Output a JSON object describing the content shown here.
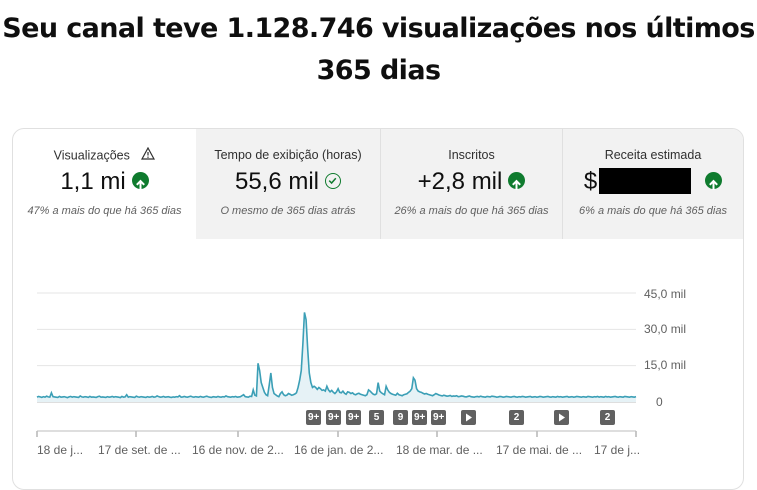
{
  "headline": {
    "line1": "Seu canal teve 1.128.746 visualizações nos últimos",
    "line2": "365 dias"
  },
  "metrics": [
    {
      "label": "Visualizações",
      "value": "1,1 mi",
      "comparison": "47% a mais do que há 365 dias",
      "trend_icon": "arrow-up-icon",
      "extra_icon": "warning-icon",
      "state": "selected"
    },
    {
      "label": "Tempo de exibição (horas)",
      "value": "55,6 mil",
      "comparison": "O mesmo de 365 dias atrás",
      "trend_icon": "check-circle-icon",
      "state": "inactive"
    },
    {
      "label": "Inscritos",
      "value": "+2,8 mil",
      "comparison": "26% a mais do que há 365 dias",
      "trend_icon": "arrow-up-icon",
      "state": "inactive"
    },
    {
      "label": "Receita estimada",
      "value": "$",
      "comparison": "6% a mais do que há 365 dias",
      "trend_icon": "arrow-up-icon",
      "value_redacted": true,
      "state": "inactive"
    }
  ],
  "chart_data": {
    "type": "area",
    "y_tick_labels": [
      "45,0 mil",
      "30,0 mil",
      "15,0 mil",
      "0"
    ],
    "y_ticks": [
      45000,
      30000,
      15000,
      0
    ],
    "ylim": [
      0,
      45000
    ],
    "x_tick_labels": [
      "18 de j...",
      "17 de set. de ...",
      "16 de nov. de 2...",
      "16 de jan. de 2...",
      "18 de mar. de ...",
      "17 de mai. de ...",
      "17 de j..."
    ],
    "grid": true,
    "series": [
      {
        "color": "#3b9fb6",
        "values": [
          2000,
          2300,
          2100,
          1900,
          2200,
          2000,
          2400,
          2100,
          2000,
          3800,
          2200,
          2100,
          2000,
          1900,
          2300,
          2000,
          2100,
          2200,
          2000,
          1800,
          2100,
          2300,
          2000,
          2200,
          2100,
          2000,
          1900,
          2500,
          2100,
          2000,
          2200,
          2100,
          1900,
          2300,
          2000,
          2100,
          2000,
          1900,
          2200,
          2400,
          2000,
          2100,
          2000,
          1900,
          2200,
          2000,
          2100,
          2300,
          2000,
          2200,
          2100,
          2000,
          1800,
          2300,
          2000,
          2100,
          3000,
          2000,
          2200,
          2100,
          2000,
          1900,
          2400,
          2100,
          2000,
          2200,
          2100,
          2000,
          1900,
          2200,
          2000,
          2100,
          2300,
          2000,
          2100,
          2500,
          2200,
          2000,
          2100,
          2300,
          2000,
          2100,
          2200,
          2000,
          1900,
          2100,
          2000,
          2200,
          2100,
          2600,
          2000,
          2100,
          2300,
          2100,
          2000,
          2200,
          2400,
          2100,
          2000,
          2200,
          2100,
          2000,
          2300,
          2100,
          2000,
          2200,
          2400,
          2100,
          2000,
          1900,
          2200,
          2100,
          2000,
          2300,
          2100,
          2000,
          2200,
          2100,
          2500,
          2200,
          2100,
          2000,
          2200,
          2100,
          2300,
          2000,
          2100,
          2200,
          2600,
          3000,
          2200,
          2100,
          2000,
          2400,
          2300,
          5000,
          2800,
          2500,
          16000,
          13000,
          8000,
          6000,
          4000,
          3000,
          2600,
          7000,
          12000,
          6000,
          3500,
          3000,
          2500,
          2200,
          3500,
          4200,
          3000,
          2600,
          2800,
          3500,
          3200,
          2800,
          3000,
          3300,
          3800,
          6000,
          9000,
          13000,
          24000,
          37000,
          34000,
          22000,
          12000,
          8000,
          6000,
          6500,
          6000,
          5200,
          6000,
          5500,
          4800,
          5000,
          4500,
          6500,
          5000,
          4200,
          4800,
          4000,
          3500,
          4200,
          5500,
          4000,
          3800,
          4500,
          3600,
          3200,
          4200,
          4000,
          3500,
          3800,
          3200,
          3000,
          3400,
          3600,
          3200,
          3000,
          2800,
          2600,
          3000,
          5000,
          4500,
          3800,
          3200,
          3000,
          3400,
          8000,
          4500,
          3800,
          3400,
          3000,
          6500,
          5000,
          4000,
          3500,
          3200,
          3000,
          2800,
          3600,
          3000,
          2800,
          2600,
          3000,
          3200,
          3400,
          4000,
          4500,
          5500,
          10000,
          9000,
          5500,
          4500,
          4200,
          4000,
          3600,
          3300,
          3500,
          3200,
          3000,
          2800,
          2600,
          3000,
          3500,
          3200,
          2900,
          2700,
          2500,
          2800,
          2600,
          2400,
          2500,
          2700,
          2300,
          2500,
          2400,
          2600,
          2200,
          2300,
          2500,
          2400,
          2200,
          2100,
          2300,
          2500,
          2200,
          2100,
          2000,
          2200,
          2300,
          2100,
          2400,
          2200,
          2100,
          2000,
          2300,
          2200,
          2100,
          2400,
          2300,
          2200,
          2000,
          2100,
          2300,
          2200,
          2000,
          2100,
          2300,
          2200,
          2100,
          2000,
          2200,
          2300,
          2100,
          2000,
          2200,
          2100,
          2300,
          2200,
          2000,
          2100,
          2200,
          2300,
          2000,
          2100,
          2200,
          2000,
          2100,
          2300,
          2200,
          2000,
          2100,
          2200,
          2300,
          2100,
          2000,
          2200,
          2100,
          2000,
          2300,
          2100,
          2200,
          2000,
          2100,
          2200,
          2300,
          2000,
          2100,
          2200,
          2000,
          2100,
          2300,
          2200,
          2100,
          2000,
          2200,
          2100,
          2000,
          2300,
          2200,
          2100,
          2000,
          2200,
          2100,
          2300,
          2000,
          2200,
          2100,
          2000,
          2300,
          2100,
          2200,
          2000,
          2100,
          2200,
          2300,
          2100,
          2000,
          2200,
          2100,
          2000,
          2300,
          2200,
          2100,
          2000,
          2200,
          2100,
          2000,
          2200
        ]
      }
    ]
  },
  "markers": [
    "9+",
    "9+",
    "9+",
    "5",
    "9",
    "9+",
    "9+",
    "play-icon",
    "2",
    "play-icon",
    "2"
  ]
}
